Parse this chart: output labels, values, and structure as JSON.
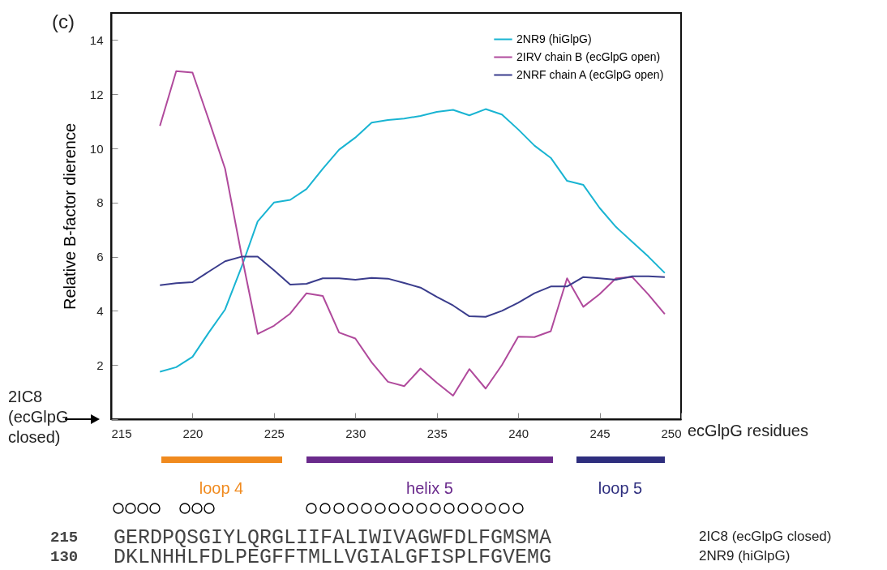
{
  "chart_data": {
    "type": "line",
    "title": "(c)",
    "xlabel": "ecGlpG residues",
    "ylabel": "Relative B-factor dierence",
    "x": [
      218,
      219,
      220,
      221,
      222,
      223,
      224,
      225,
      226,
      227,
      228,
      229,
      230,
      231,
      232,
      233,
      234,
      235,
      236,
      237,
      238,
      239,
      240,
      241,
      242,
      243,
      244,
      245,
      246,
      247,
      248,
      249
    ],
    "series": [
      {
        "name": "2NR9 (hiGlpG)",
        "color": "#19b4d2",
        "values": [
          1.75,
          1.92,
          2.3,
          3.2,
          4.05,
          5.6,
          7.3,
          8.0,
          8.1,
          8.5,
          9.25,
          9.95,
          10.4,
          10.95,
          11.05,
          11.1,
          11.2,
          11.35,
          11.42,
          11.22,
          11.45,
          11.25,
          10.7,
          10.1,
          9.65,
          8.8,
          8.65,
          7.8,
          7.1,
          6.55,
          6.0,
          5.4
        ]
      },
      {
        "name": "2IRV chain B (ecGlpG open)",
        "color": "#b04a9c",
        "values": [
          10.83,
          12.85,
          12.8,
          11.05,
          9.25,
          6.1,
          3.15,
          3.45,
          3.9,
          4.65,
          4.55,
          3.2,
          2.98,
          2.1,
          1.38,
          1.22,
          1.87,
          1.35,
          0.87,
          1.85,
          1.13,
          2.0,
          3.05,
          3.03,
          3.25,
          5.2,
          4.15,
          4.62,
          5.2,
          5.25,
          4.6,
          3.88
        ]
      },
      {
        "name": "2NRF chain A (ecGlpG open)",
        "color": "#3a3c8c",
        "values": [
          4.95,
          5.02,
          5.06,
          5.45,
          5.83,
          6.0,
          6.0,
          5.5,
          4.97,
          5.0,
          5.2,
          5.2,
          5.15,
          5.22,
          5.19,
          5.03,
          4.86,
          4.52,
          4.2,
          3.8,
          3.78,
          4.0,
          4.3,
          4.65,
          4.9,
          4.9,
          5.25,
          5.2,
          5.15,
          5.28,
          5.28,
          5.25
        ]
      }
    ],
    "xlim": [
      215,
      250
    ],
    "xticks": [
      215,
      220,
      225,
      230,
      235,
      240,
      245,
      250
    ],
    "ylim": [
      0,
      15
    ],
    "yticks": [
      {
        "value": 0,
        "label": null
      },
      2,
      4,
      6,
      8,
      10,
      12,
      14
    ],
    "legend": "top right",
    "grid": false,
    "annotations": [
      "2IC8 (ecGlpG closed)",
      "loop 4",
      "helix 5",
      "loop 5",
      "215",
      "GERDPQSGIYLQRGLIIFALIWIVAGWFDLFGMSMA",
      "2IC8   (ecGlpG closed)",
      "130",
      "DKLNHHLFDLPEGFFTMLLVGIALGFISPLFGVEMG",
      "2NR9 (hiGlpG)"
    ]
  }
}
